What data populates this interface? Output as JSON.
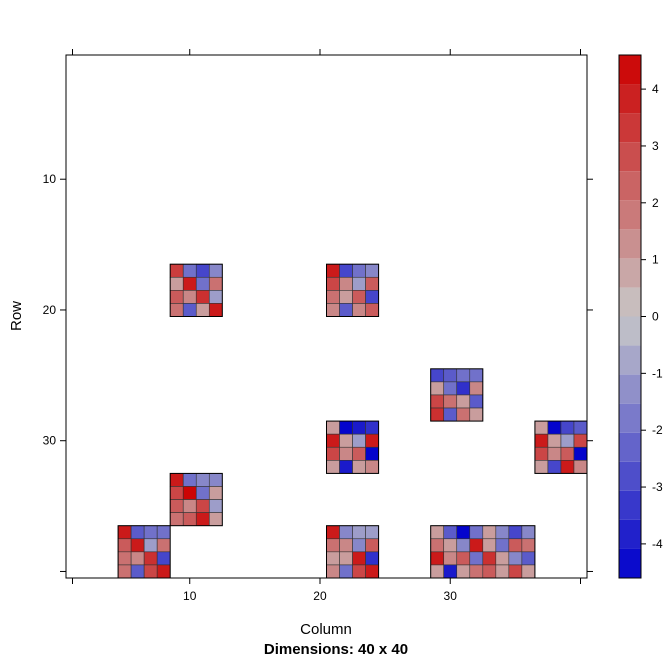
{
  "chart_data": {
    "type": "heatmap",
    "xlabel": "Column",
    "ylabel": "Row",
    "sub": "Dimensions: 40 x 40",
    "xlim": [
      0.5,
      40.5
    ],
    "ylim": [
      40.5,
      0.5
    ],
    "x_ticks": [
      10,
      20,
      30
    ],
    "y_ticks": [
      10,
      20,
      30
    ],
    "colorbar": {
      "min": -4.6,
      "max": 4.6,
      "ticks": [
        -4,
        -3,
        -2,
        -1,
        0,
        1,
        2,
        3,
        4
      ],
      "low_color": "#0000cc",
      "mid_color": "#c8c8c8",
      "high_color": "#cc0000"
    },
    "blocks": [
      {
        "row0": 17,
        "col0": 9,
        "values": [
          [
            3.2,
            -2.0,
            -3.0,
            -1.5
          ],
          [
            1.0,
            4.0,
            -2.0,
            2.0
          ],
          [
            2.5,
            1.5,
            3.5,
            -1.0
          ],
          [
            2.0,
            -2.5,
            1.0,
            4.0
          ]
        ]
      },
      {
        "row0": 17,
        "col0": 21,
        "values": [
          [
            4.0,
            -3.0,
            -2.0,
            -1.5
          ],
          [
            3.0,
            1.5,
            -1.0,
            2.5
          ],
          [
            2.0,
            1.0,
            2.5,
            -3.0
          ],
          [
            1.5,
            -2.5,
            1.5,
            2.5
          ]
        ]
      },
      {
        "row0": 25,
        "col0": 29,
        "values": [
          [
            -3.0,
            -2.5,
            -2.0,
            -2.0
          ],
          [
            1.0,
            -2.0,
            -3.5,
            1.5
          ],
          [
            3.0,
            2.0,
            1.0,
            -2.5
          ],
          [
            3.5,
            -2.5,
            2.0,
            1.0
          ]
        ]
      },
      {
        "row0": 29,
        "col0": 21,
        "values": [
          [
            1.0,
            -4.5,
            -4.0,
            -3.5
          ],
          [
            4.0,
            1.0,
            -1.0,
            4.0
          ],
          [
            3.0,
            1.5,
            2.5,
            -4.5
          ],
          [
            1.0,
            -4.0,
            1.0,
            1.5
          ]
        ]
      },
      {
        "row0": 29,
        "col0": 37,
        "values": [
          [
            1.0,
            -4.5,
            -3.0,
            -2.5
          ],
          [
            4.0,
            1.0,
            -1.0,
            3.0
          ],
          [
            3.0,
            1.5,
            2.5,
            -4.5
          ],
          [
            1.0,
            -3.0,
            4.0,
            1.5
          ]
        ]
      },
      {
        "row0": 33,
        "col0": 9,
        "values": [
          [
            4.0,
            -2.0,
            -1.5,
            -1.5
          ],
          [
            3.0,
            4.5,
            -2.0,
            1.0
          ],
          [
            2.5,
            1.5,
            3.0,
            -1.0
          ],
          [
            2.0,
            2.5,
            4.0,
            1.0
          ]
        ]
      },
      {
        "row0": 37,
        "col0": 5,
        "values": [
          [
            4.0,
            -2.5,
            -2.0,
            -2.0
          ],
          [
            2.5,
            4.0,
            -1.0,
            2.0
          ],
          [
            2.0,
            1.5,
            3.5,
            -3.0
          ],
          [
            2.0,
            -2.5,
            3.0,
            4.0
          ]
        ]
      },
      {
        "row0": 37,
        "col0": 21,
        "values": [
          [
            4.0,
            -1.5,
            -1.0,
            -1.0
          ],
          [
            2.0,
            1.5,
            -1.5,
            2.5
          ],
          [
            1.0,
            1.0,
            4.0,
            -3.5
          ],
          [
            1.5,
            -2.0,
            3.0,
            4.0
          ]
        ]
      },
      {
        "row0": 37,
        "col0": 29,
        "values": [
          [
            1.0,
            -2.5,
            -4.5,
            -2.0,
            1.0,
            -1.5,
            -3.0,
            -1.5
          ],
          [
            2.0,
            1.0,
            -1.5,
            4.0,
            1.0,
            -2.0,
            2.5,
            2.0
          ],
          [
            4.0,
            1.5,
            2.5,
            -2.0,
            3.5,
            1.0,
            -1.5,
            -2.5
          ],
          [
            1.0,
            -4.0,
            1.0,
            2.0,
            2.5,
            1.0,
            3.0,
            1.0
          ]
        ]
      }
    ]
  }
}
